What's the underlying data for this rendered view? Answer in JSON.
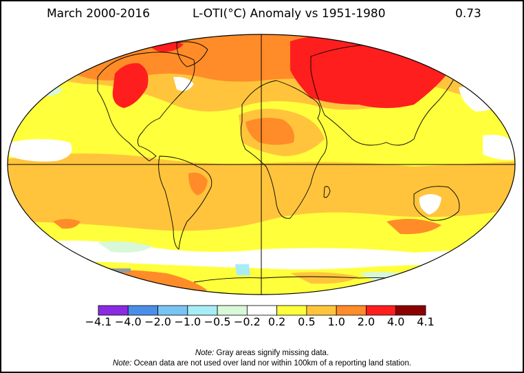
{
  "header": {
    "period": "March 2000-2016",
    "title": "L-OTI(°C) Anomaly vs 1951-1980",
    "global_mean": "0.73"
  },
  "colorbar": {
    "tick_labels": [
      "−4.1",
      "−4.0",
      "−2.0",
      "−1.0",
      "−0.5",
      "−0.2",
      "0.2",
      "0.5",
      "1.0",
      "2.0",
      "4.0",
      "4.1"
    ],
    "colors": [
      "#8a2be2",
      "#4a8ee8",
      "#78c4f4",
      "#a8ecf6",
      "#d8f8d8",
      "#ffffff",
      "#ffff3c",
      "#ffc43c",
      "#ff8c28",
      "#ff1e1e",
      "#8c0000"
    ]
  },
  "notes": {
    "note1_prefix": "Note:",
    "note1_text": " Gray areas signify missing data.",
    "note2_prefix": "Note:",
    "note2_text": " Ocean data are not used over land nor within 100km of a reporting land station."
  },
  "map": {
    "projection": "Robinson",
    "legend_colors": {
      "white": "#ffffff",
      "light_green": "#d8f8d8",
      "light_blue": "#a8ecf6",
      "yellow": "#ffff3c",
      "orange_light": "#ffc43c",
      "orange": "#ff8c28",
      "red": "#ff1e1e",
      "missing_gray": "#9a9a9a"
    }
  }
}
